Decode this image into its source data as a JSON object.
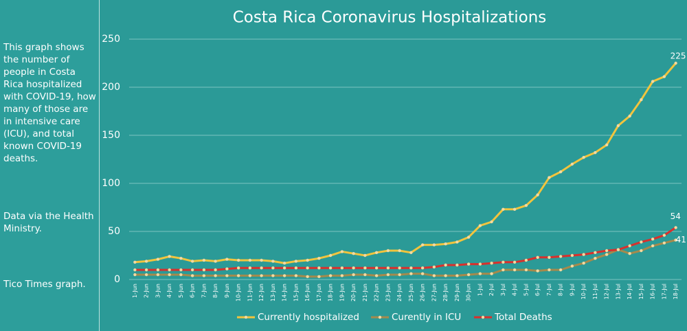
{
  "chart_data": {
    "type": "line",
    "title": "Costa Rica Coronavirus Hospitalizations",
    "categories": [
      "1-Jun",
      "2-Jun",
      "3-Jun",
      "4-Jun",
      "5-Jun",
      "6-Jun",
      "7-Jun",
      "8-Jun",
      "9-Jun",
      "10-Jun",
      "11-Jun",
      "12-Jun",
      "13-Jun",
      "14-Jun",
      "15-Jun",
      "16-Jun",
      "17-Jun",
      "18-Jun",
      "19-Jun",
      "20-Jun",
      "21-Jun",
      "22-Jun",
      "23-Jun",
      "24-Jun",
      "25-Jun",
      "26-Jun",
      "27-Jun",
      "28-Jun",
      "29-Jun",
      "30-Jun",
      "1-Jul",
      "2-Jul",
      "3-Jul",
      "4-Jul",
      "5-Jul",
      "6-Jul",
      "7-Jul",
      "8-Jul",
      "9-Jul",
      "10-Jul",
      "11-Jul",
      "12-Jul",
      "13-Jul",
      "14-Jul",
      "15-Jul",
      "16-Jul",
      "17-Jul",
      "18-Jul"
    ],
    "series": [
      {
        "name": "Currently hospitalized",
        "color": "#f2c43d",
        "values": [
          18,
          19,
          21,
          24,
          22,
          19,
          20,
          19,
          21,
          20,
          20,
          20,
          19,
          17,
          19,
          20,
          22,
          25,
          29,
          27,
          25,
          28,
          30,
          30,
          28,
          36,
          36,
          37,
          39,
          44,
          56,
          60,
          73,
          73,
          77,
          88,
          106,
          112,
          120,
          127,
          132,
          140,
          160,
          170,
          187,
          206,
          211,
          225
        ]
      },
      {
        "name": "Curently in ICU",
        "color": "#a58a4c",
        "values": [
          5,
          5,
          5,
          5,
          5,
          4,
          4,
          4,
          4,
          4,
          4,
          4,
          4,
          4,
          4,
          3,
          3,
          4,
          4,
          5,
          5,
          4,
          5,
          5,
          6,
          6,
          4,
          4,
          4,
          5,
          6,
          6,
          10,
          10,
          10,
          9,
          10,
          10,
          14,
          17,
          22,
          26,
          31,
          27,
          30,
          35,
          38,
          41
        ]
      },
      {
        "name": "Total Deaths",
        "color": "#d9302c",
        "values": [
          10,
          10,
          10,
          10,
          10,
          10,
          10,
          10,
          11,
          12,
          12,
          12,
          12,
          12,
          12,
          12,
          12,
          12,
          12,
          12,
          12,
          12,
          12,
          12,
          12,
          12,
          13,
          15,
          15,
          16,
          16,
          17,
          18,
          18,
          20,
          23,
          23,
          24,
          25,
          26,
          28,
          30,
          31,
          35,
          39,
          42,
          46,
          54
        ]
      }
    ],
    "ylim": [
      0,
      250
    ],
    "yticks": [
      0,
      50,
      100,
      150,
      200,
      250
    ],
    "grid": true,
    "legend": "bottom"
  },
  "side_panel": {
    "description": "This graph shows the number of people in Costa Rica hospitalized with COVID-19, how many of those are in intensive care (ICU), and total known COVID-19 deaths.",
    "source": "Data via the Health Ministry.",
    "credit": "Tico Times graph."
  }
}
